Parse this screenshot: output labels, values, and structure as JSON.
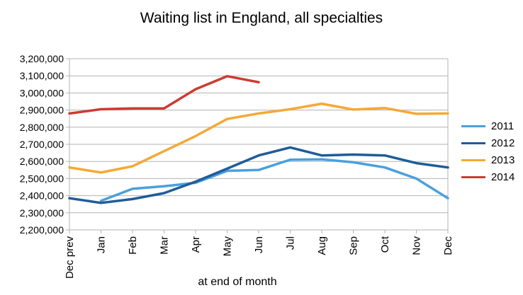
{
  "chart_data": {
    "type": "line",
    "title": "Waiting list in England, all specialties",
    "xlabel": "at end of month",
    "ylabel": "",
    "categories": [
      "Dec prev",
      "Jan",
      "Feb",
      "Mar",
      "Apr",
      "May",
      "Jun",
      "Jul",
      "Aug",
      "Sep",
      "Oct",
      "Nov",
      "Dec"
    ],
    "ylim": [
      2200000,
      3200000
    ],
    "yticks": [
      2200000,
      2300000,
      2400000,
      2500000,
      2600000,
      2700000,
      2800000,
      2900000,
      3000000,
      3100000,
      3200000
    ],
    "ytick_labels": [
      "2,200,000",
      "2,300,000",
      "2,400,000",
      "2,500,000",
      "2,600,000",
      "2,700,000",
      "2,800,000",
      "2,900,000",
      "3,000,000",
      "3,100,000",
      "3,200,000"
    ],
    "grid": "horizontal",
    "legend_position": "right",
    "series": [
      {
        "name": "2011",
        "color": "#4aa0dc",
        "values": [
          null,
          2370000,
          2440000,
          2455000,
          2475000,
          2545000,
          2550000,
          2610000,
          2612000,
          2595000,
          2565000,
          2500000,
          2385000
        ]
      },
      {
        "name": "2012",
        "color": "#1f5c99",
        "values": [
          2385000,
          2358000,
          2380000,
          2415000,
          2482000,
          2558000,
          2635000,
          2682000,
          2635000,
          2640000,
          2635000,
          2590000,
          2565000
        ]
      },
      {
        "name": "2013",
        "color": "#f4a937",
        "values": [
          2565000,
          2535000,
          2572000,
          2660000,
          2748000,
          2848000,
          2880000,
          2905000,
          2937000,
          2903000,
          2912000,
          2878000,
          2880000
        ]
      },
      {
        "name": "2014",
        "color": "#cc3b33",
        "values": [
          2880000,
          2905000,
          2910000,
          2910000,
          3022000,
          3098000,
          3063000,
          null,
          null,
          null,
          null,
          null,
          null
        ]
      }
    ]
  }
}
